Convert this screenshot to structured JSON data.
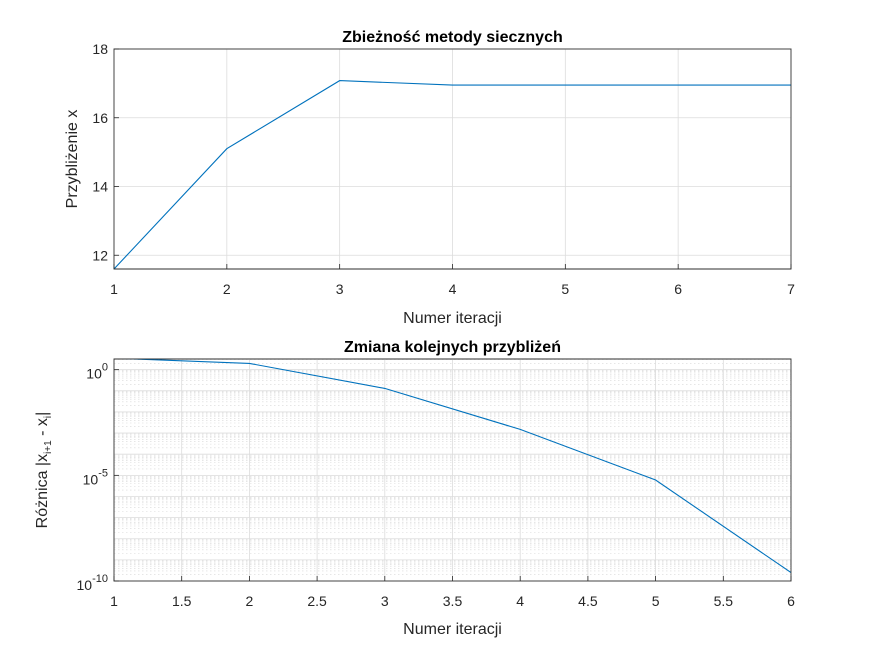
{
  "chart_data": [
    {
      "type": "line",
      "title": "Zbieżność metody siecznych",
      "xlabel": "Numer iteracji",
      "ylabel": "Przybliżenie x",
      "xlim": [
        1,
        7
      ],
      "ylim": [
        11.6,
        18
      ],
      "xticks": [
        "1",
        "2",
        "3",
        "4",
        "5",
        "6",
        "7"
      ],
      "yticks": [
        "12",
        "14",
        "16",
        "18"
      ],
      "grid": true,
      "x": [
        1,
        2,
        3,
        4,
        5,
        6,
        7
      ],
      "series": [
        {
          "color": "#0072bd",
          "values": [
            11.6,
            15.1,
            17.08,
            16.95,
            16.95,
            16.95,
            16.95
          ]
        }
      ]
    },
    {
      "type": "line",
      "title": "Zmiana kolejnych przybliżeń",
      "xlabel": "Numer iteracji",
      "ylabel_main": "Różnica |x",
      "ylabel_sub1": "i+1",
      "ylabel_mid": " - x",
      "ylabel_sub2": "i",
      "ylabel_end": "|",
      "yscale": "log",
      "xlim": [
        1,
        6
      ],
      "ylim": [
        1e-10,
        3.2
      ],
      "xticks": [
        "1",
        "1.5",
        "2",
        "2.5",
        "3",
        "3.5",
        "4",
        "4.5",
        "5",
        "5.5",
        "6"
      ],
      "yticks": [
        {
          "base": "10",
          "exp": "0"
        },
        {
          "base": "10",
          "exp": "-5"
        },
        {
          "base": "10",
          "exp": "-10"
        }
      ],
      "grid": true,
      "minor_grid": true,
      "x": [
        1,
        2,
        3,
        4,
        5,
        6
      ],
      "series": [
        {
          "color": "#0072bd",
          "values": [
            3.5,
            1.98,
            0.13,
            0.0015,
            6e-06,
            2.5e-10
          ]
        }
      ]
    }
  ]
}
